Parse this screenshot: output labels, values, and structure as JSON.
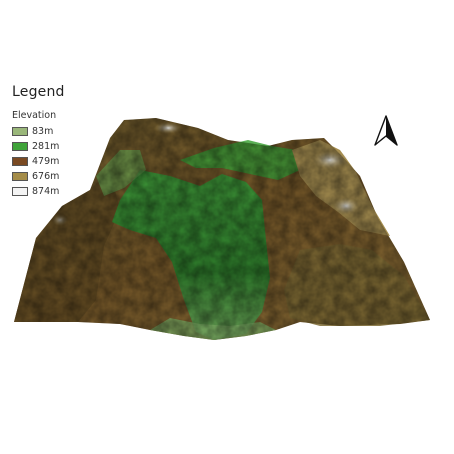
{
  "legend": {
    "title": "Legend",
    "subtitle": "Elevation",
    "items": [
      {
        "label": "83m",
        "color": "#9ab77a"
      },
      {
        "label": "281m",
        "color": "#3fa33a"
      },
      {
        "label": "479m",
        "color": "#7a4a22"
      },
      {
        "label": "676m",
        "color": "#a48c48"
      },
      {
        "label": "874m",
        "color": "#f4f4f4"
      }
    ]
  },
  "north_arrow": {
    "icon": "north-arrow-icon"
  }
}
